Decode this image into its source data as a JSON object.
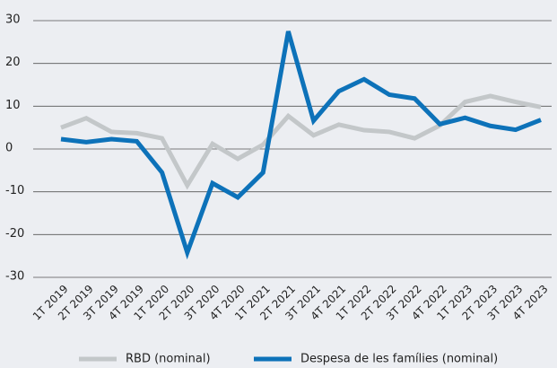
{
  "chart_data": {
    "type": "line",
    "categories": [
      "1T 2019",
      "2T 2019",
      "3T 2019",
      "4T 2019",
      "1T 2020",
      "2T 2020",
      "3T 2020",
      "4T 2020",
      "1T 2021",
      "2T 2021",
      "3T 2021",
      "4T 2021",
      "1T 2022",
      "2T 2022",
      "3T 2022",
      "4T 2022",
      "1T 2023",
      "2T 2023",
      "3T 2023",
      "4T 2023"
    ],
    "series": [
      {
        "name": "RBD (nominal)",
        "color": "#c3c7c9",
        "values": [
          5,
          7.2,
          4,
          3.7,
          2.5,
          -8.5,
          1.2,
          -2.3,
          1,
          7.7,
          3.2,
          5.7,
          4.4,
          4,
          2.5,
          5.5,
          11,
          12.4,
          11,
          9.8
        ]
      },
      {
        "name": "Despesa de les famílies (nominal)",
        "color": "#0d72b9",
        "values": [
          2.3,
          1.6,
          2.3,
          1.8,
          -5.5,
          -24.2,
          -8,
          -11.3,
          -5.5,
          27.5,
          6.6,
          13.5,
          16.3,
          12.7,
          11.8,
          5.8,
          7.3,
          5.4,
          4.5,
          6.8
        ]
      }
    ],
    "ylim": [
      -30,
      30
    ],
    "yticks": [
      -30,
      -20,
      -10,
      0,
      10,
      20,
      30
    ],
    "grid": true
  }
}
